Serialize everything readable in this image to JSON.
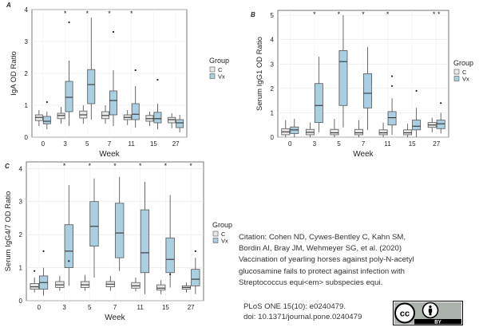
{
  "chart_data": [
    {
      "type": "boxplot",
      "panel_label": "A",
      "xlabel": "Week",
      "ylabel": "IgA OD Ratio",
      "ylim": [
        0,
        4
      ],
      "yticks": [
        0,
        1,
        2,
        3,
        4
      ],
      "categories": [
        "0",
        "3",
        "5",
        "7",
        "11",
        "15",
        "27"
      ],
      "significance": [
        "",
        "*",
        "*",
        "*",
        "*",
        "",
        ""
      ],
      "legend": {
        "title": "Group",
        "entries": [
          "C",
          "Vx"
        ],
        "placement": "right"
      },
      "series": [
        {
          "name": "C",
          "color": "#e8e8e8",
          "boxes": [
            {
              "whislo": 0.35,
              "q1": 0.52,
              "med": 0.62,
              "q3": 0.7,
              "whishi": 0.85,
              "fliers": []
            },
            {
              "whislo": 0.42,
              "q1": 0.58,
              "med": 0.68,
              "q3": 0.75,
              "whishi": 0.95,
              "fliers": []
            },
            {
              "whislo": 0.42,
              "q1": 0.6,
              "med": 0.7,
              "q3": 0.82,
              "whishi": 1.0,
              "fliers": []
            },
            {
              "whislo": 0.42,
              "q1": 0.58,
              "med": 0.68,
              "q3": 0.8,
              "whishi": 1.0,
              "fliers": []
            },
            {
              "whislo": 0.38,
              "q1": 0.55,
              "med": 0.62,
              "q3": 0.7,
              "whishi": 0.85,
              "fliers": []
            },
            {
              "whislo": 0.35,
              "q1": 0.5,
              "med": 0.58,
              "q3": 0.68,
              "whishi": 0.8,
              "fliers": []
            },
            {
              "whislo": 0.28,
              "q1": 0.45,
              "med": 0.55,
              "q3": 0.62,
              "whishi": 0.75,
              "fliers": []
            }
          ]
        },
        {
          "name": "Vx",
          "color": "#a9cfe0",
          "boxes": [
            {
              "whislo": 0.25,
              "q1": 0.42,
              "med": 0.5,
              "q3": 0.65,
              "whishi": 0.8,
              "fliers": [
                1.1
              ]
            },
            {
              "whislo": 0.35,
              "q1": 0.8,
              "med": 1.25,
              "q3": 1.75,
              "whishi": 2.4,
              "fliers": [
                3.6
              ]
            },
            {
              "whislo": 0.55,
              "q1": 1.05,
              "med": 1.65,
              "q3": 2.12,
              "whishi": 3.75,
              "fliers": []
            },
            {
              "whislo": 0.35,
              "q1": 0.7,
              "med": 1.15,
              "q3": 1.45,
              "whishi": 2.1,
              "fliers": [
                3.3
              ]
            },
            {
              "whislo": 0.3,
              "q1": 0.55,
              "med": 0.72,
              "q3": 1.05,
              "whishi": 1.6,
              "fliers": [
                2.1
              ]
            },
            {
              "whislo": 0.25,
              "q1": 0.45,
              "med": 0.58,
              "q3": 0.78,
              "whishi": 1.05,
              "fliers": [
                1.8
              ]
            },
            {
              "whislo": 0.15,
              "q1": 0.3,
              "med": 0.45,
              "q3": 0.55,
              "whishi": 0.7,
              "fliers": []
            }
          ]
        }
      ]
    },
    {
      "type": "boxplot",
      "panel_label": "B",
      "xlabel": "Week",
      "ylabel": "Serum IgG1 OD Ratio",
      "ylim": [
        0,
        5.2
      ],
      "yticks": [
        0,
        1,
        2,
        3,
        4,
        5
      ],
      "categories": [
        "0",
        "3",
        "5",
        "7",
        "11",
        "15",
        "27"
      ],
      "significance": [
        "",
        "*",
        "*",
        "*",
        "*",
        "",
        "* *"
      ],
      "legend": {
        "title": "Group",
        "entries": [
          "C",
          "Vx"
        ],
        "placement": "right"
      },
      "series": [
        {
          "name": "C",
          "color": "#e8e8e8",
          "boxes": [
            {
              "whislo": 0.0,
              "q1": 0.1,
              "med": 0.22,
              "q3": 0.35,
              "whishi": 0.7,
              "fliers": []
            },
            {
              "whislo": 0.0,
              "q1": 0.1,
              "med": 0.2,
              "q3": 0.32,
              "whishi": 0.6,
              "fliers": []
            },
            {
              "whislo": 0.0,
              "q1": 0.1,
              "med": 0.18,
              "q3": 0.32,
              "whishi": 0.75,
              "fliers": []
            },
            {
              "whislo": 0.0,
              "q1": 0.1,
              "med": 0.18,
              "q3": 0.32,
              "whishi": 0.7,
              "fliers": []
            },
            {
              "whislo": 0.0,
              "q1": 0.1,
              "med": 0.18,
              "q3": 0.3,
              "whishi": 0.6,
              "fliers": []
            },
            {
              "whislo": 0.0,
              "q1": 0.1,
              "med": 0.18,
              "q3": 0.3,
              "whishi": 0.55,
              "fliers": []
            },
            {
              "whislo": 0.2,
              "q1": 0.4,
              "med": 0.5,
              "q3": 0.6,
              "whishi": 0.8,
              "fliers": []
            }
          ]
        },
        {
          "name": "Vx",
          "color": "#a9cfe0",
          "boxes": [
            {
              "whislo": 0.0,
              "q1": 0.15,
              "med": 0.3,
              "q3": 0.42,
              "whishi": 0.75,
              "fliers": []
            },
            {
              "whislo": 0.2,
              "q1": 0.6,
              "med": 1.3,
              "q3": 2.2,
              "whishi": 3.3,
              "fliers": []
            },
            {
              "whislo": 0.4,
              "q1": 1.3,
              "med": 3.1,
              "q3": 3.55,
              "whishi": 5.0,
              "fliers": []
            },
            {
              "whislo": 0.3,
              "q1": 1.2,
              "med": 1.8,
              "q3": 2.6,
              "whishi": 3.7,
              "fliers": []
            },
            {
              "whislo": 0.1,
              "q1": 0.5,
              "med": 0.8,
              "q3": 1.05,
              "whishi": 1.6,
              "fliers": [
                2.1,
                2.5
              ]
            },
            {
              "whislo": 0.0,
              "q1": 0.3,
              "med": 0.45,
              "q3": 0.7,
              "whishi": 1.2,
              "fliers": [
                1.9
              ]
            },
            {
              "whislo": 0.15,
              "q1": 0.35,
              "med": 0.55,
              "q3": 0.7,
              "whishi": 1.0,
              "fliers": [
                1.4
              ]
            }
          ]
        }
      ]
    },
    {
      "type": "boxplot",
      "panel_label": "C",
      "xlabel": "Week",
      "ylabel": "Serum IgG4/7 OD Ratio",
      "ylim": [
        0,
        4.2
      ],
      "yticks": [
        0,
        1,
        2,
        3,
        4
      ],
      "categories": [
        "0",
        "3",
        "5",
        "7",
        "11",
        "15",
        "27"
      ],
      "significance": [
        "",
        "*",
        "*",
        "*",
        "*",
        "*",
        "*"
      ],
      "legend": {
        "title": "Group",
        "entries": [
          "C",
          "Vx"
        ],
        "placement": "right"
      },
      "series": [
        {
          "name": "C",
          "color": "#e8e8e8",
          "boxes": [
            {
              "whislo": 0.25,
              "q1": 0.35,
              "med": 0.42,
              "q3": 0.52,
              "whishi": 0.7,
              "fliers": [
                0.9
              ]
            },
            {
              "whislo": 0.3,
              "q1": 0.4,
              "med": 0.48,
              "q3": 0.58,
              "whishi": 0.75,
              "fliers": []
            },
            {
              "whislo": 0.3,
              "q1": 0.4,
              "med": 0.48,
              "q3": 0.58,
              "whishi": 0.78,
              "fliers": []
            },
            {
              "whislo": 0.3,
              "q1": 0.42,
              "med": 0.5,
              "q3": 0.58,
              "whishi": 0.75,
              "fliers": []
            },
            {
              "whislo": 0.28,
              "q1": 0.38,
              "med": 0.45,
              "q3": 0.55,
              "whishi": 0.7,
              "fliers": []
            },
            {
              "whislo": 0.2,
              "q1": 0.32,
              "med": 0.38,
              "q3": 0.48,
              "whishi": 0.62,
              "fliers": []
            },
            {
              "whislo": 0.25,
              "q1": 0.35,
              "med": 0.4,
              "q3": 0.45,
              "whishi": 0.55,
              "fliers": []
            }
          ]
        },
        {
          "name": "Vx",
          "color": "#a9cfe0",
          "boxes": [
            {
              "whislo": 0.15,
              "q1": 0.35,
              "med": 0.55,
              "q3": 0.75,
              "whishi": 1.0,
              "fliers": [
                1.5
              ]
            },
            {
              "whislo": 0.45,
              "q1": 1.0,
              "med": 1.5,
              "q3": 2.3,
              "whishi": 3.5,
              "fliers": [
                1.2
              ]
            },
            {
              "whislo": 0.7,
              "q1": 1.65,
              "med": 2.25,
              "q3": 3.0,
              "whishi": 3.7,
              "fliers": []
            },
            {
              "whislo": 0.9,
              "q1": 1.3,
              "med": 2.05,
              "q3": 2.95,
              "whishi": 3.75,
              "fliers": []
            },
            {
              "whislo": 0.2,
              "q1": 0.85,
              "med": 1.45,
              "q3": 2.75,
              "whishi": 3.6,
              "fliers": []
            },
            {
              "whislo": 0.4,
              "q1": 0.85,
              "med": 1.25,
              "q3": 1.9,
              "whishi": 3.2,
              "fliers": [
                0.8
              ]
            },
            {
              "whislo": 0.2,
              "q1": 0.45,
              "med": 0.65,
              "q3": 0.95,
              "whishi": 1.3,
              "fliers": [
                1.5
              ]
            }
          ]
        }
      ]
    }
  ],
  "citation": {
    "lines": [
      "Citation: Cohen ND, Cywes-Bentley C, Kahn SM,",
      "Bordin AI, Bray JM, Wehmeyer SG, et al. (2020)",
      "Vaccination of yearling horses against poly-N-acetyl",
      "glucosamine fails to protect against infection with",
      "Streptococcus equi<em> subspecies equi."
    ],
    "journal": "PLoS ONE 15(10): e0240479.",
    "doi": "doi: 10.1371/journal.pone.0240479"
  },
  "license_badge": {
    "icons": [
      "cc-icon",
      "attribution-person-icon"
    ],
    "label": "BY"
  }
}
